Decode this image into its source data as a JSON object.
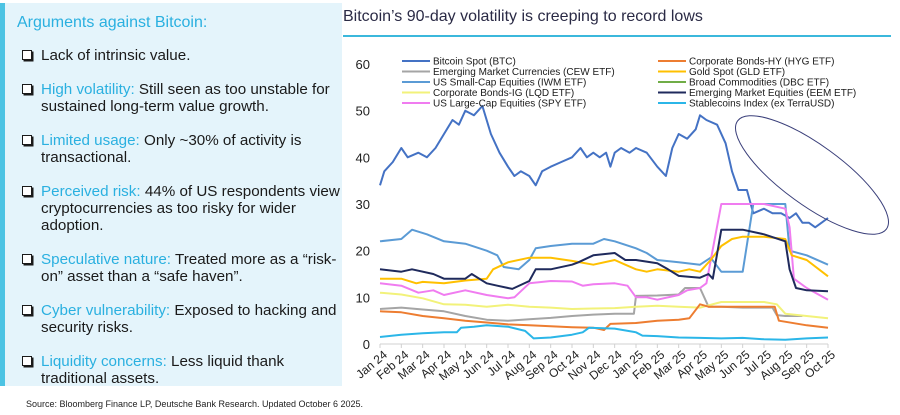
{
  "panel": {
    "title": "Arguments against Bitcoin:",
    "items": [
      {
        "label": "",
        "text": "Lack of intrinsic value."
      },
      {
        "label": "High volatility:",
        "text": " Still seen as too unstable for sustained long-term value growth."
      },
      {
        "label": "Limited usage:",
        "text": " Only ~30% of activity is transactional."
      },
      {
        "label": "Perceived risk:",
        "text": " 44% of US respondents view cryptocurrencies as too risky for wider adoption."
      },
      {
        "label": "Speculative nature:",
        "text": " Treated more as a “risk-on” asset than a “safe haven”."
      },
      {
        "label": "Cyber vulnerability:",
        "text": " Exposed to hacking and security risks."
      },
      {
        "label": "Liquidity concerns:",
        "text": " Less liquid thank traditional assets."
      }
    ]
  },
  "source": "Source: Bloomberg Finance LP, Deutsche Bank Research. Updated October 6 2025.",
  "colors": {
    "accent": "#2ab0e0",
    "panel_bg": "#e4f4fb",
    "panel_border": "#4cc3e3",
    "rule": "#3bb8dc"
  },
  "chart_data": {
    "type": "line",
    "title": "Bitcoin’s 90-day volatility is creeping to record lows",
    "xlabel": "",
    "ylabel": "",
    "ylim": [
      0,
      60
    ],
    "yticks": [
      0,
      10,
      20,
      30,
      40,
      50,
      60
    ],
    "grid": false,
    "legend": "top",
    "categories": [
      "Jan 24",
      "Feb 24",
      "Mar 24",
      "Apr 24",
      "May 24",
      "Jun 24",
      "Jul 24",
      "Aug 24",
      "Sep 24",
      "Oct 24",
      "Nov 24",
      "Dec 24",
      "Jan 25",
      "Feb 25",
      "Mar 25",
      "Apr 25",
      "May 25",
      "Jun 25",
      "Jul 25",
      "Aug 25",
      "Sep 25",
      "Oct 25"
    ],
    "x_month_index_note": "x values are month offsets from Jan 24",
    "annotation": "ellipse around Bitcoin decline Apr 25 - Oct 25",
    "series": [
      {
        "name": "Bitcoin Spot (BTC)",
        "color": "#4472c4",
        "points": [
          [
            0,
            34
          ],
          [
            0.2,
            37
          ],
          [
            0.6,
            39
          ],
          [
            1,
            42
          ],
          [
            1.3,
            40
          ],
          [
            1.8,
            41
          ],
          [
            2.2,
            40
          ],
          [
            2.6,
            42
          ],
          [
            3,
            45
          ],
          [
            3.4,
            48
          ],
          [
            3.7,
            47
          ],
          [
            4,
            50
          ],
          [
            4.4,
            49
          ],
          [
            4.8,
            51
          ],
          [
            5.2,
            45
          ],
          [
            5.6,
            41
          ],
          [
            6,
            38
          ],
          [
            6.3,
            36
          ],
          [
            6.6,
            37
          ],
          [
            7,
            36
          ],
          [
            7.3,
            34
          ],
          [
            7.6,
            37
          ],
          [
            8,
            38
          ],
          [
            8.5,
            39
          ],
          [
            9,
            40
          ],
          [
            9.4,
            42
          ],
          [
            9.7,
            40
          ],
          [
            10,
            41
          ],
          [
            10.3,
            40
          ],
          [
            10.6,
            41
          ],
          [
            10.8,
            38
          ],
          [
            11,
            41
          ],
          [
            11.3,
            42
          ],
          [
            11.7,
            41
          ],
          [
            12,
            42
          ],
          [
            12.5,
            41
          ],
          [
            13,
            38
          ],
          [
            13.4,
            36
          ],
          [
            13.7,
            42
          ],
          [
            14,
            45
          ],
          [
            14.4,
            44
          ],
          [
            14.8,
            46
          ],
          [
            15,
            49
          ],
          [
            15.3,
            48
          ],
          [
            15.8,
            47
          ],
          [
            16.2,
            43
          ],
          [
            16.5,
            37
          ],
          [
            16.8,
            33
          ],
          [
            17.2,
            33
          ],
          [
            17.5,
            28
          ],
          [
            18,
            29
          ],
          [
            18.4,
            28
          ],
          [
            18.8,
            28
          ],
          [
            19.2,
            27
          ],
          [
            19.5,
            28
          ],
          [
            19.8,
            26
          ],
          [
            20.1,
            26
          ],
          [
            20.4,
            25
          ],
          [
            20.7,
            26
          ],
          [
            21,
            27
          ]
        ]
      },
      {
        "name": "Emerging Market Currencies (CEW ETF)",
        "color": "#a5a5a5",
        "points": [
          [
            0,
            7.5
          ],
          [
            1,
            7.8
          ],
          [
            2,
            7.4
          ],
          [
            3,
            7
          ],
          [
            4,
            6
          ],
          [
            5,
            5.2
          ],
          [
            6,
            5
          ],
          [
            7,
            5.3
          ],
          [
            8,
            5.6
          ],
          [
            9,
            6
          ],
          [
            10,
            6.3
          ],
          [
            11,
            6.5
          ],
          [
            11.9,
            6.5
          ],
          [
            12,
            10.3
          ],
          [
            13,
            10.4
          ],
          [
            14,
            10.6
          ],
          [
            14.3,
            12
          ],
          [
            15,
            12
          ],
          [
            15.4,
            8
          ],
          [
            16,
            8
          ],
          [
            17,
            7.8
          ],
          [
            18,
            7.8
          ],
          [
            18.4,
            7.8
          ],
          [
            18.6,
            6.2
          ],
          [
            19,
            6
          ],
          [
            19.8,
            6
          ]
        ]
      },
      {
        "name": "US Small-Cap Equities (IWM ETF)",
        "color": "#5b9bd5",
        "points": [
          [
            0,
            22
          ],
          [
            1,
            22.5
          ],
          [
            1.5,
            24.5
          ],
          [
            2.2,
            23.5
          ],
          [
            3,
            22
          ],
          [
            4,
            21.5
          ],
          [
            5,
            20
          ],
          [
            5.5,
            19
          ],
          [
            5.8,
            16.5
          ],
          [
            6.5,
            16
          ],
          [
            7,
            18
          ],
          [
            7.3,
            20.5
          ],
          [
            8,
            21
          ],
          [
            9,
            21.5
          ],
          [
            10,
            21.5
          ],
          [
            10.5,
            22.5
          ],
          [
            11,
            22
          ],
          [
            12,
            20.5
          ],
          [
            12.5,
            19.5
          ],
          [
            13,
            18
          ],
          [
            14,
            17.5
          ],
          [
            15,
            17
          ],
          [
            15.5,
            18.5
          ],
          [
            16,
            15.5
          ],
          [
            16.5,
            15.5
          ],
          [
            17,
            15.5
          ],
          [
            17.5,
            30
          ],
          [
            18,
            30
          ],
          [
            18.5,
            30
          ],
          [
            19,
            30
          ],
          [
            19.2,
            20
          ],
          [
            20,
            19
          ],
          [
            21,
            17
          ]
        ]
      },
      {
        "name": "Corporate Bonds-IG (LQD ETF)",
        "color": "#f2f27a",
        "points": [
          [
            0,
            11
          ],
          [
            1,
            10.6
          ],
          [
            2,
            9.8
          ],
          [
            3,
            8.5
          ],
          [
            4,
            8.4
          ],
          [
            5,
            8
          ],
          [
            6,
            8.4
          ],
          [
            7,
            8
          ],
          [
            8,
            7.8
          ],
          [
            9,
            7.5
          ],
          [
            10,
            7.6
          ],
          [
            11,
            7.7
          ],
          [
            12,
            8
          ],
          [
            13,
            8.2
          ],
          [
            14,
            8
          ],
          [
            15,
            7.8
          ],
          [
            16,
            9
          ],
          [
            17,
            9
          ],
          [
            18,
            9
          ],
          [
            18.6,
            8.5
          ],
          [
            19,
            6.5
          ],
          [
            20,
            6
          ],
          [
            21,
            5.5
          ]
        ]
      },
      {
        "name": "US Large-Cap Equities (SPY ETF)",
        "color": "#f07cf0",
        "points": [
          [
            0,
            13
          ],
          [
            1,
            12.5
          ],
          [
            1.8,
            11
          ],
          [
            2.5,
            11.5
          ],
          [
            3,
            10.5
          ],
          [
            4,
            11.5
          ],
          [
            5,
            10.5
          ],
          [
            6,
            9.8
          ],
          [
            6.3,
            10
          ],
          [
            7,
            13
          ],
          [
            8,
            13.5
          ],
          [
            9,
            13.4
          ],
          [
            9.5,
            12.5
          ],
          [
            10,
            12.8
          ],
          [
            11,
            13
          ],
          [
            11.6,
            12.5
          ],
          [
            12,
            10
          ],
          [
            12.5,
            10
          ],
          [
            13,
            9.5
          ],
          [
            14,
            10.5
          ],
          [
            14.4,
            11.5
          ],
          [
            15,
            12
          ],
          [
            15.3,
            13
          ],
          [
            16,
            30
          ],
          [
            17,
            30
          ],
          [
            18,
            30
          ],
          [
            19,
            29
          ],
          [
            19.2,
            25
          ],
          [
            19.4,
            14
          ],
          [
            20,
            12
          ],
          [
            21,
            9.5
          ]
        ]
      },
      {
        "name": "Corporate Bonds-HY (HYG ETF)",
        "color": "#ed7d31",
        "points": [
          [
            0,
            7
          ],
          [
            1,
            6.8
          ],
          [
            2,
            6
          ],
          [
            3,
            5.5
          ],
          [
            4,
            5
          ],
          [
            5,
            4.6
          ],
          [
            6,
            4.2
          ],
          [
            7,
            4
          ],
          [
            8,
            3.8
          ],
          [
            9,
            3.6
          ],
          [
            10,
            3.5
          ],
          [
            10.5,
            3
          ],
          [
            10.8,
            4.3
          ],
          [
            12,
            4.5
          ],
          [
            13,
            5
          ],
          [
            14,
            5.2
          ],
          [
            14.5,
            5.5
          ],
          [
            15,
            8.5
          ],
          [
            15.4,
            8
          ],
          [
            16,
            8
          ],
          [
            17,
            8
          ],
          [
            18,
            8
          ],
          [
            18.5,
            8
          ],
          [
            18.7,
            5
          ],
          [
            20,
            4
          ],
          [
            21,
            3.5
          ]
        ]
      },
      {
        "name": "Gold Spot (GLD ETF)",
        "color": "#ffc000",
        "points": [
          [
            0,
            14
          ],
          [
            1,
            14
          ],
          [
            1.7,
            13
          ],
          [
            2,
            13.3
          ],
          [
            3,
            13
          ],
          [
            4,
            13.6
          ],
          [
            5,
            14
          ],
          [
            5.3,
            16
          ],
          [
            6,
            17.5
          ],
          [
            7,
            18.5
          ],
          [
            8,
            18.5
          ],
          [
            9,
            17.8
          ],
          [
            10,
            17
          ],
          [
            11,
            18
          ],
          [
            11.5,
            17
          ],
          [
            12,
            16
          ],
          [
            12.5,
            15.5
          ],
          [
            13,
            16
          ],
          [
            14,
            15.5
          ],
          [
            14.5,
            16
          ],
          [
            15,
            15.5
          ],
          [
            15.5,
            18
          ],
          [
            16,
            21
          ],
          [
            16.5,
            22.5
          ],
          [
            17,
            23
          ],
          [
            18,
            23
          ],
          [
            19,
            22.5
          ],
          [
            19.3,
            19
          ],
          [
            20,
            18
          ],
          [
            21,
            14.5
          ]
        ]
      },
      {
        "name": "Broad Commodities (DBC ETF)",
        "color": "#70ad47",
        "points": []
      },
      {
        "name": "Emerging Market Equities (EEM ETF)",
        "color": "#1f2a5c",
        "points": [
          [
            0,
            16
          ],
          [
            1,
            15.5
          ],
          [
            1.5,
            16
          ],
          [
            2.5,
            15
          ],
          [
            3,
            14
          ],
          [
            4,
            14
          ],
          [
            4.3,
            15
          ],
          [
            5,
            13
          ],
          [
            5.5,
            12.5
          ],
          [
            6.2,
            11.8
          ],
          [
            7,
            13.5
          ],
          [
            7.3,
            16
          ],
          [
            8,
            16
          ],
          [
            9,
            17
          ],
          [
            9.3,
            17.5
          ],
          [
            10,
            19
          ],
          [
            11,
            19.5
          ],
          [
            11.5,
            18
          ],
          [
            12,
            18
          ],
          [
            13,
            17.3
          ],
          [
            13.5,
            16
          ],
          [
            14,
            14.6
          ],
          [
            15,
            14.2
          ],
          [
            15.4,
            15
          ],
          [
            15.6,
            14
          ],
          [
            16,
            24.5
          ],
          [
            17,
            24.5
          ],
          [
            18,
            23.5
          ],
          [
            19,
            22
          ],
          [
            19.2,
            16
          ],
          [
            19.5,
            12
          ],
          [
            20,
            11.5
          ],
          [
            21,
            11.3
          ]
        ]
      },
      {
        "name": "Stablecoins Index (ex TerraUSD)",
        "color": "#2bb6e8",
        "points": [
          [
            0,
            1.5
          ],
          [
            1,
            2
          ],
          [
            2,
            2.3
          ],
          [
            3,
            2.5
          ],
          [
            3.6,
            2.5
          ],
          [
            3.8,
            3.5
          ],
          [
            4.4,
            3.7
          ],
          [
            5,
            4
          ],
          [
            6,
            3.7
          ],
          [
            6.8,
            2.8
          ],
          [
            7.2,
            1.2
          ],
          [
            8,
            1.4
          ],
          [
            9,
            2
          ],
          [
            9.5,
            2.5
          ],
          [
            9.8,
            3.5
          ],
          [
            11,
            3.3
          ],
          [
            12,
            2.5
          ],
          [
            12.3,
            1.8
          ],
          [
            13,
            1.7
          ],
          [
            14,
            1.4
          ],
          [
            15,
            1.3
          ],
          [
            16,
            1.2
          ],
          [
            17,
            1.3
          ],
          [
            18,
            1
          ],
          [
            19,
            0.9
          ],
          [
            20,
            1.2
          ],
          [
            21,
            1.4
          ]
        ]
      }
    ]
  }
}
